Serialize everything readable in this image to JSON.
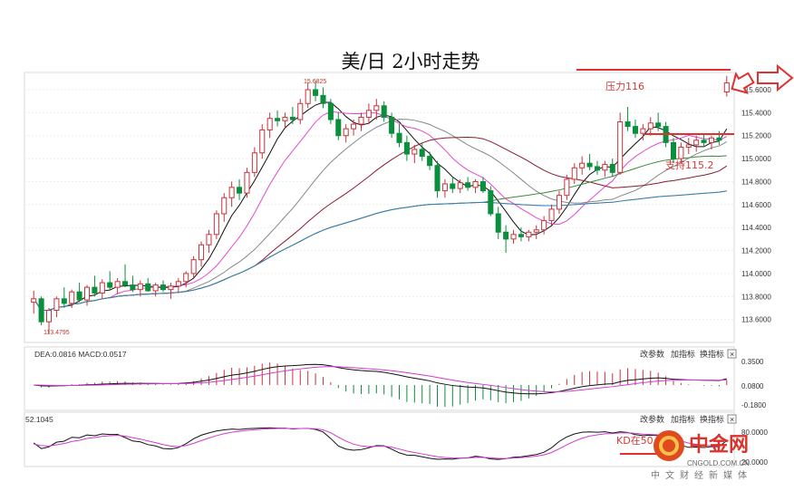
{
  "chart_data": {
    "type": "candlestick",
    "title": "美/日 2小时走势",
    "ylim": [
      113.4,
      115.75
    ],
    "yticks": [
      "115.6000",
      "115.4000",
      "115.2000",
      "115.0000",
      "114.8000",
      "114.6000",
      "114.4000",
      "114.2000",
      "114.0000",
      "113.8000",
      "113.6000"
    ],
    "annotations": {
      "high_label": "15.6825",
      "low_label": "113.4795",
      "resistance_label": "压力116",
      "support_label": "支持115.2"
    },
    "candles": [
      [
        113.75,
        113.85,
        113.65,
        113.78
      ],
      [
        113.78,
        113.8,
        113.55,
        113.58
      ],
      [
        113.58,
        113.7,
        113.48,
        113.68
      ],
      [
        113.68,
        113.8,
        113.62,
        113.78
      ],
      [
        113.78,
        113.88,
        113.7,
        113.74
      ],
      [
        113.74,
        113.86,
        113.7,
        113.84
      ],
      [
        113.84,
        113.92,
        113.75,
        113.77
      ],
      [
        113.77,
        113.9,
        113.72,
        113.88
      ],
      [
        113.88,
        113.98,
        113.8,
        113.83
      ],
      [
        113.83,
        113.95,
        113.78,
        113.92
      ],
      [
        113.92,
        114.02,
        113.85,
        113.88
      ],
      [
        113.88,
        113.96,
        113.82,
        113.93
      ],
      [
        113.93,
        114.08,
        113.88,
        113.9
      ],
      [
        113.9,
        113.98,
        113.84,
        113.86
      ],
      [
        113.86,
        113.94,
        113.8,
        113.91
      ],
      [
        113.91,
        113.96,
        113.84,
        113.85
      ],
      [
        113.85,
        113.92,
        113.8,
        113.9
      ],
      [
        113.9,
        113.94,
        113.84,
        113.86
      ],
      [
        113.86,
        113.92,
        113.78,
        113.89
      ],
      [
        113.89,
        113.96,
        113.84,
        113.93
      ],
      [
        113.93,
        114.02,
        113.88,
        114.0
      ],
      [
        114.0,
        114.15,
        113.95,
        114.12
      ],
      [
        114.12,
        114.28,
        114.06,
        114.25
      ],
      [
        114.25,
        114.38,
        114.18,
        114.34
      ],
      [
        114.34,
        114.55,
        114.3,
        114.52
      ],
      [
        114.52,
        114.7,
        114.45,
        114.66
      ],
      [
        114.66,
        114.8,
        114.58,
        114.75
      ],
      [
        114.75,
        114.82,
        114.64,
        114.7
      ],
      [
        114.7,
        114.92,
        114.66,
        114.88
      ],
      [
        114.88,
        115.1,
        114.84,
        115.05
      ],
      [
        115.05,
        115.3,
        115.0,
        115.25
      ],
      [
        115.25,
        115.4,
        115.18,
        115.35
      ],
      [
        115.35,
        115.42,
        115.28,
        115.33
      ],
      [
        115.33,
        115.4,
        115.26,
        115.36
      ],
      [
        115.36,
        115.45,
        115.3,
        115.34
      ],
      [
        115.34,
        115.52,
        115.3,
        115.48
      ],
      [
        115.48,
        115.66,
        115.44,
        115.6
      ],
      [
        115.6,
        115.68,
        115.5,
        115.55
      ],
      [
        115.55,
        115.62,
        115.44,
        115.48
      ],
      [
        115.48,
        115.52,
        115.3,
        115.34
      ],
      [
        115.34,
        115.4,
        115.16,
        115.2
      ],
      [
        115.2,
        115.3,
        115.14,
        115.26
      ],
      [
        115.26,
        115.34,
        115.2,
        115.3
      ],
      [
        115.3,
        115.4,
        115.24,
        115.36
      ],
      [
        115.36,
        115.48,
        115.3,
        115.42
      ],
      [
        115.42,
        115.52,
        115.34,
        115.46
      ],
      [
        115.46,
        115.5,
        115.32,
        115.36
      ],
      [
        115.36,
        115.4,
        115.18,
        115.22
      ],
      [
        115.22,
        115.3,
        115.1,
        115.14
      ],
      [
        115.14,
        115.2,
        114.98,
        115.04
      ],
      [
        115.04,
        115.12,
        114.96,
        115.08
      ],
      [
        115.08,
        115.14,
        114.98,
        115.02
      ],
      [
        115.02,
        115.06,
        114.9,
        114.94
      ],
      [
        114.94,
        114.98,
        114.66,
        114.72
      ],
      [
        114.72,
        114.82,
        114.66,
        114.78
      ],
      [
        114.78,
        114.84,
        114.7,
        114.74
      ],
      [
        114.74,
        114.82,
        114.7,
        114.79
      ],
      [
        114.79,
        114.84,
        114.72,
        114.75
      ],
      [
        114.75,
        114.82,
        114.7,
        114.8
      ],
      [
        114.8,
        114.84,
        114.7,
        114.72
      ],
      [
        114.72,
        114.76,
        114.5,
        114.52
      ],
      [
        114.52,
        114.58,
        114.3,
        114.36
      ],
      [
        114.36,
        114.42,
        114.18,
        114.3
      ],
      [
        114.3,
        114.38,
        114.26,
        114.34
      ],
      [
        114.34,
        114.4,
        114.28,
        114.32
      ],
      [
        114.32,
        114.38,
        114.28,
        114.36
      ],
      [
        114.36,
        114.42,
        114.3,
        114.38
      ],
      [
        114.38,
        114.5,
        114.34,
        114.46
      ],
      [
        114.46,
        114.6,
        114.42,
        114.56
      ],
      [
        114.56,
        114.72,
        114.52,
        114.68
      ],
      [
        114.68,
        114.86,
        114.64,
        114.82
      ],
      [
        114.82,
        114.96,
        114.78,
        114.92
      ],
      [
        114.92,
        115.02,
        114.86,
        114.96
      ],
      [
        114.96,
        115.04,
        114.9,
        114.93
      ],
      [
        114.93,
        114.98,
        114.86,
        114.9
      ],
      [
        114.9,
        114.98,
        114.84,
        114.95
      ],
      [
        114.95,
        115.0,
        114.84,
        114.88
      ],
      [
        114.88,
        115.4,
        114.86,
        115.32
      ],
      [
        115.32,
        115.45,
        115.24,
        115.28
      ],
      [
        115.28,
        115.34,
        115.18,
        115.22
      ],
      [
        115.22,
        115.3,
        115.16,
        115.26
      ],
      [
        115.26,
        115.36,
        115.2,
        115.31
      ],
      [
        115.31,
        115.4,
        115.24,
        115.28
      ],
      [
        115.28,
        115.32,
        115.1,
        115.14
      ],
      [
        115.14,
        115.18,
        114.96,
        115.0
      ],
      [
        115.0,
        115.14,
        114.96,
        115.1
      ],
      [
        115.1,
        115.18,
        115.04,
        115.12
      ],
      [
        115.12,
        115.2,
        115.06,
        115.16
      ],
      [
        115.16,
        115.22,
        115.1,
        115.14
      ],
      [
        115.14,
        115.2,
        115.08,
        115.18
      ],
      [
        115.18,
        115.24,
        115.12,
        115.16
      ],
      [
        115.58,
        115.72,
        115.54,
        115.66
      ]
    ]
  },
  "ui": {
    "macd_label": "DEA:0.0816  MACD:0.0517",
    "kd_label": "52.1045",
    "btn_params": "改参数",
    "btn_add": "加指标",
    "btn_switch": "换指标",
    "btn_close": "×",
    "macd_ticks": [
      "0.3500",
      "0.0800",
      "-0.1800"
    ],
    "kd_ticks": [
      "80.0000",
      "20.0000"
    ],
    "kd_annotation": "KD在50上方",
    "logo_text": "中金网",
    "logo_url": "CNGOLD.COM.CN",
    "logo_sub": "中文财经新媒体"
  },
  "colors": {
    "up": "#c8323a",
    "down": "#0a8f3c",
    "ma5": "#111111",
    "ma10": "#e14bd0",
    "ma20": "#888888",
    "ma30": "#8b1b2f",
    "ma60": "#3a8a3a",
    "ma120": "#e0a42a",
    "ma240": "#2c7fc4",
    "annotation": "#e03030"
  }
}
